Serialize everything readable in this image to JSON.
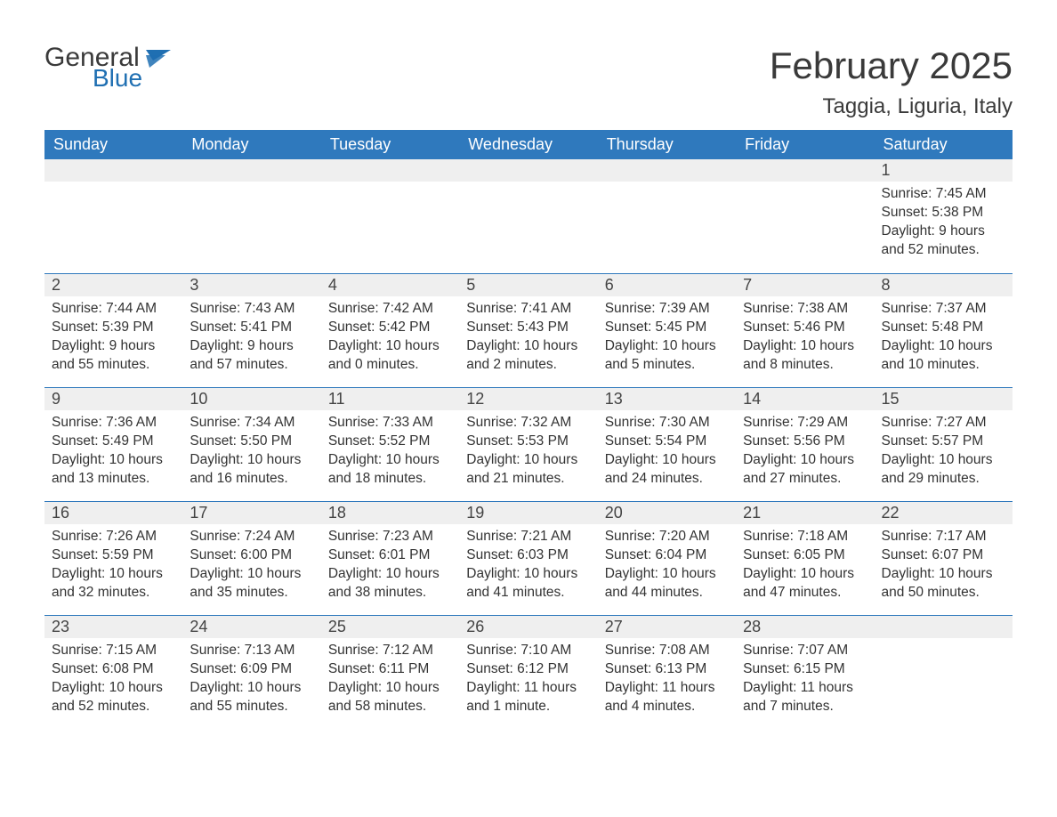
{
  "logo": {
    "text1": "General",
    "text2": "Blue",
    "color_general": "#3a3a3a",
    "color_blue": "#1f6fb2",
    "flag_color": "#1f6fb2"
  },
  "title": "February 2025",
  "location": "Taggia, Liguria, Italy",
  "colors": {
    "header_bg": "#2f79bd",
    "header_text": "#ffffff",
    "row_border": "#2f79bd",
    "daynum_bg": "#efefef",
    "body_text": "#333333",
    "page_bg": "#ffffff"
  },
  "weekdays": [
    "Sunday",
    "Monday",
    "Tuesday",
    "Wednesday",
    "Thursday",
    "Friday",
    "Saturday"
  ],
  "weeks": [
    [
      null,
      null,
      null,
      null,
      null,
      null,
      {
        "n": "1",
        "sr": "Sunrise: 7:45 AM",
        "ss": "Sunset: 5:38 PM",
        "dl": "Daylight: 9 hours and 52 minutes."
      }
    ],
    [
      {
        "n": "2",
        "sr": "Sunrise: 7:44 AM",
        "ss": "Sunset: 5:39 PM",
        "dl": "Daylight: 9 hours and 55 minutes."
      },
      {
        "n": "3",
        "sr": "Sunrise: 7:43 AM",
        "ss": "Sunset: 5:41 PM",
        "dl": "Daylight: 9 hours and 57 minutes."
      },
      {
        "n": "4",
        "sr": "Sunrise: 7:42 AM",
        "ss": "Sunset: 5:42 PM",
        "dl": "Daylight: 10 hours and 0 minutes."
      },
      {
        "n": "5",
        "sr": "Sunrise: 7:41 AM",
        "ss": "Sunset: 5:43 PM",
        "dl": "Daylight: 10 hours and 2 minutes."
      },
      {
        "n": "6",
        "sr": "Sunrise: 7:39 AM",
        "ss": "Sunset: 5:45 PM",
        "dl": "Daylight: 10 hours and 5 minutes."
      },
      {
        "n": "7",
        "sr": "Sunrise: 7:38 AM",
        "ss": "Sunset: 5:46 PM",
        "dl": "Daylight: 10 hours and 8 minutes."
      },
      {
        "n": "8",
        "sr": "Sunrise: 7:37 AM",
        "ss": "Sunset: 5:48 PM",
        "dl": "Daylight: 10 hours and 10 minutes."
      }
    ],
    [
      {
        "n": "9",
        "sr": "Sunrise: 7:36 AM",
        "ss": "Sunset: 5:49 PM",
        "dl": "Daylight: 10 hours and 13 minutes."
      },
      {
        "n": "10",
        "sr": "Sunrise: 7:34 AM",
        "ss": "Sunset: 5:50 PM",
        "dl": "Daylight: 10 hours and 16 minutes."
      },
      {
        "n": "11",
        "sr": "Sunrise: 7:33 AM",
        "ss": "Sunset: 5:52 PM",
        "dl": "Daylight: 10 hours and 18 minutes."
      },
      {
        "n": "12",
        "sr": "Sunrise: 7:32 AM",
        "ss": "Sunset: 5:53 PM",
        "dl": "Daylight: 10 hours and 21 minutes."
      },
      {
        "n": "13",
        "sr": "Sunrise: 7:30 AM",
        "ss": "Sunset: 5:54 PM",
        "dl": "Daylight: 10 hours and 24 minutes."
      },
      {
        "n": "14",
        "sr": "Sunrise: 7:29 AM",
        "ss": "Sunset: 5:56 PM",
        "dl": "Daylight: 10 hours and 27 minutes."
      },
      {
        "n": "15",
        "sr": "Sunrise: 7:27 AM",
        "ss": "Sunset: 5:57 PM",
        "dl": "Daylight: 10 hours and 29 minutes."
      }
    ],
    [
      {
        "n": "16",
        "sr": "Sunrise: 7:26 AM",
        "ss": "Sunset: 5:59 PM",
        "dl": "Daylight: 10 hours and 32 minutes."
      },
      {
        "n": "17",
        "sr": "Sunrise: 7:24 AM",
        "ss": "Sunset: 6:00 PM",
        "dl": "Daylight: 10 hours and 35 minutes."
      },
      {
        "n": "18",
        "sr": "Sunrise: 7:23 AM",
        "ss": "Sunset: 6:01 PM",
        "dl": "Daylight: 10 hours and 38 minutes."
      },
      {
        "n": "19",
        "sr": "Sunrise: 7:21 AM",
        "ss": "Sunset: 6:03 PM",
        "dl": "Daylight: 10 hours and 41 minutes."
      },
      {
        "n": "20",
        "sr": "Sunrise: 7:20 AM",
        "ss": "Sunset: 6:04 PM",
        "dl": "Daylight: 10 hours and 44 minutes."
      },
      {
        "n": "21",
        "sr": "Sunrise: 7:18 AM",
        "ss": "Sunset: 6:05 PM",
        "dl": "Daylight: 10 hours and 47 minutes."
      },
      {
        "n": "22",
        "sr": "Sunrise: 7:17 AM",
        "ss": "Sunset: 6:07 PM",
        "dl": "Daylight: 10 hours and 50 minutes."
      }
    ],
    [
      {
        "n": "23",
        "sr": "Sunrise: 7:15 AM",
        "ss": "Sunset: 6:08 PM",
        "dl": "Daylight: 10 hours and 52 minutes."
      },
      {
        "n": "24",
        "sr": "Sunrise: 7:13 AM",
        "ss": "Sunset: 6:09 PM",
        "dl": "Daylight: 10 hours and 55 minutes."
      },
      {
        "n": "25",
        "sr": "Sunrise: 7:12 AM",
        "ss": "Sunset: 6:11 PM",
        "dl": "Daylight: 10 hours and 58 minutes."
      },
      {
        "n": "26",
        "sr": "Sunrise: 7:10 AM",
        "ss": "Sunset: 6:12 PM",
        "dl": "Daylight: 11 hours and 1 minute."
      },
      {
        "n": "27",
        "sr": "Sunrise: 7:08 AM",
        "ss": "Sunset: 6:13 PM",
        "dl": "Daylight: 11 hours and 4 minutes."
      },
      {
        "n": "28",
        "sr": "Sunrise: 7:07 AM",
        "ss": "Sunset: 6:15 PM",
        "dl": "Daylight: 11 hours and 7 minutes."
      },
      null
    ]
  ]
}
